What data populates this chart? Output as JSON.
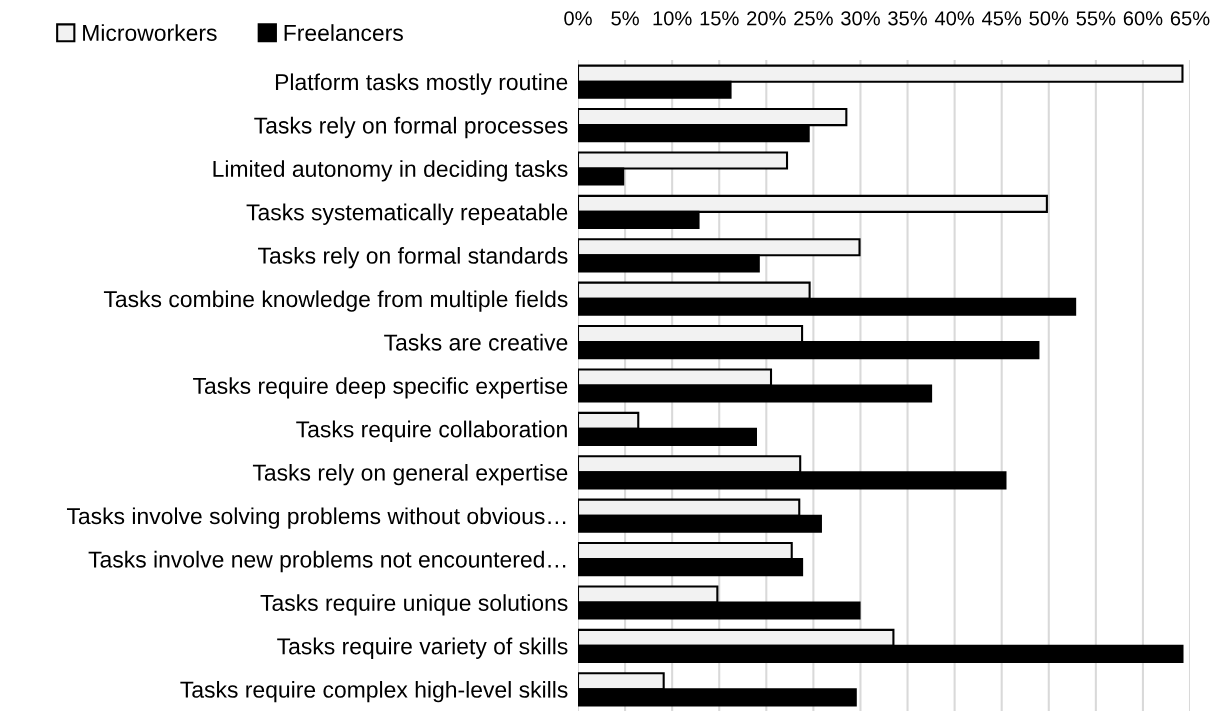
{
  "chart_data": {
    "type": "bar",
    "orientation": "horizontal",
    "categories": [
      "Platform tasks mostly routine",
      "Tasks rely on formal processes",
      "Limited autonomy in deciding tasks",
      "Tasks systematically repeatable",
      "Tasks rely on formal standards",
      "Tasks combine knowledge from multiple fields",
      "Tasks are creative",
      "Tasks require deep specific expertise",
      "Tasks require collaboration",
      "Tasks rely on general expertise",
      "Tasks involve solving problems without obvious…",
      "Tasks involve new problems not encountered…",
      "Tasks require unique solutions",
      "Tasks require variety of skills",
      "Tasks require complex high-level skills"
    ],
    "series": [
      {
        "name": "Microworkers",
        "color": "#f2f2f2",
        "values": [
          64.2,
          28.5,
          22.2,
          49.8,
          29.9,
          24.6,
          23.8,
          20.5,
          6.4,
          23.6,
          23.5,
          22.7,
          14.8,
          33.5,
          9.1
        ]
      },
      {
        "name": "Freelancers",
        "color": "#000000",
        "values": [
          16.2,
          24.5,
          4.8,
          12.8,
          19.2,
          52.8,
          48.9,
          37.5,
          18.9,
          45.4,
          25.8,
          23.8,
          29.9,
          64.2,
          29.5
        ]
      }
    ],
    "xlim": [
      0,
      65
    ],
    "xticks": [
      {
        "value": 0,
        "label": "0%"
      },
      {
        "value": 5,
        "label": "5%"
      },
      {
        "value": 10,
        "label": "10%"
      },
      {
        "value": 15,
        "label": "15%"
      },
      {
        "value": 20,
        "label": "20%"
      },
      {
        "value": 25,
        "label": "25%"
      },
      {
        "value": 30,
        "label": "30%"
      },
      {
        "value": 35,
        "label": "35%"
      },
      {
        "value": 40,
        "label": "40%"
      },
      {
        "value": 45,
        "label": "45%"
      },
      {
        "value": 50,
        "label": "50%"
      },
      {
        "value": 55,
        "label": "55%"
      },
      {
        "value": 60,
        "label": "60%"
      },
      {
        "value": 65,
        "label": "65%"
      }
    ],
    "grid": "x",
    "legend": "top left"
  }
}
